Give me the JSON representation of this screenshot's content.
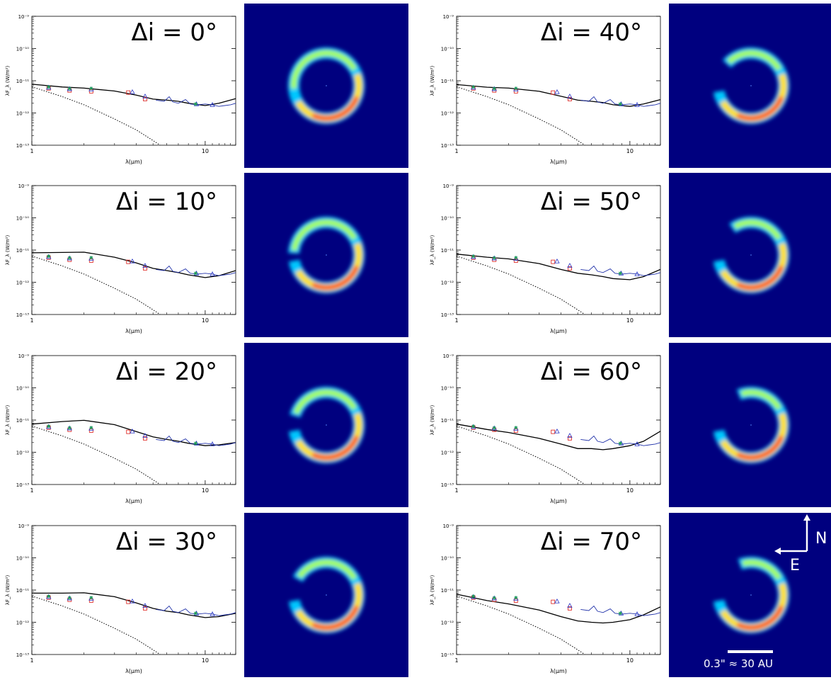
{
  "figure": {
    "axes": {
      "ylabel": "λF_λ (W/m²)",
      "xlabel": "λ(μm)",
      "x_tick_labels": [
        "1",
        "10"
      ],
      "y_tick_labels": [
        "10⁻⁹",
        "10⁻¹⁰",
        "10⁻¹¹",
        "10⁻¹²",
        "10⁻¹³"
      ]
    },
    "compass": {
      "north": "N",
      "east": "E"
    },
    "scale_bar": {
      "label": "0.3\" ≈ 30 AU"
    },
    "colors": {
      "model_line": "#000000",
      "stellar_line": "#000000",
      "irs_spectrum": "#2233aa",
      "square": "#e0302a",
      "triangle": "#2a39c8",
      "star": "#1aa050",
      "image_bg": "#00007f"
    }
  },
  "chart_data": [
    {
      "type": "line",
      "panel": "Δi = 0°",
      "delta_i_label": "Δi = 0°",
      "delta_i": 0,
      "xlim": [
        1,
        15
      ],
      "ylim": [
        1e-13,
        1e-09
      ],
      "xscale": "log",
      "yscale": "log",
      "model": [
        [
          1,
          7.8e-12
        ],
        [
          1.5,
          6.4e-12
        ],
        [
          2,
          5.9e-12
        ],
        [
          3,
          4.8e-12
        ],
        [
          4,
          3.6e-12
        ],
        [
          5,
          2.7e-12
        ],
        [
          6,
          2.5e-12
        ],
        [
          7,
          2.3e-12
        ],
        [
          8,
          2e-12
        ],
        [
          10,
          1.7e-12
        ],
        [
          12,
          2e-12
        ],
        [
          15,
          2.8e-12
        ]
      ]
    },
    {
      "type": "line",
      "panel": "Δi = 10°",
      "delta_i_label": "Δi = 10°",
      "delta_i": 10,
      "xlim": [
        1,
        15
      ],
      "ylim": [
        1e-13,
        1e-09
      ],
      "xscale": "log",
      "yscale": "log",
      "model": [
        [
          1,
          8.2e-12
        ],
        [
          1.5,
          8.4e-12
        ],
        [
          2,
          8.6e-12
        ],
        [
          3,
          6e-12
        ],
        [
          4,
          4e-12
        ],
        [
          5,
          2.7e-12
        ],
        [
          6,
          2.3e-12
        ],
        [
          7,
          2e-12
        ],
        [
          8,
          1.7e-12
        ],
        [
          10,
          1.4e-12
        ],
        [
          12,
          1.6e-12
        ],
        [
          15,
          2.3e-12
        ]
      ]
    },
    {
      "type": "line",
      "panel": "Δi = 20°",
      "delta_i_label": "Δi = 20°",
      "delta_i": 20,
      "xlim": [
        1,
        15
      ],
      "ylim": [
        1e-13,
        1e-09
      ],
      "xscale": "log",
      "yscale": "log",
      "model": [
        [
          1,
          7.5e-12
        ],
        [
          1.5,
          9e-12
        ],
        [
          2,
          9.8e-12
        ],
        [
          3,
          7.2e-12
        ],
        [
          4,
          4.4e-12
        ],
        [
          5,
          3e-12
        ],
        [
          6,
          2.5e-12
        ],
        [
          7,
          2.2e-12
        ],
        [
          8,
          1.9e-12
        ],
        [
          10,
          1.6e-12
        ],
        [
          12,
          1.7e-12
        ],
        [
          15,
          2e-12
        ]
      ]
    },
    {
      "type": "line",
      "panel": "Δi = 30°",
      "delta_i_label": "Δi = 30°",
      "delta_i": 30,
      "xlim": [
        1,
        15
      ],
      "ylim": [
        1e-13,
        1e-09
      ],
      "xscale": "log",
      "yscale": "log",
      "model": [
        [
          1,
          8e-12
        ],
        [
          1.5,
          8e-12
        ],
        [
          2,
          8.2e-12
        ],
        [
          3,
          6.2e-12
        ],
        [
          4,
          4e-12
        ],
        [
          5,
          2.7e-12
        ],
        [
          6,
          2.2e-12
        ],
        [
          7,
          2e-12
        ],
        [
          8,
          1.7e-12
        ],
        [
          10,
          1.4e-12
        ],
        [
          12,
          1.5e-12
        ],
        [
          15,
          1.9e-12
        ]
      ]
    },
    {
      "type": "line",
      "panel": "Δi = 40°",
      "delta_i_label": "Δi = 40°",
      "delta_i": 40,
      "xlim": [
        1,
        15
      ],
      "ylim": [
        1e-13,
        1e-09
      ],
      "xscale": "log",
      "yscale": "log",
      "model": [
        [
          1,
          7.6e-12
        ],
        [
          1.5,
          6.3e-12
        ],
        [
          2,
          5.9e-12
        ],
        [
          3,
          4.7e-12
        ],
        [
          4,
          3.3e-12
        ],
        [
          5,
          2.5e-12
        ],
        [
          6,
          2.3e-12
        ],
        [
          7,
          2.1e-12
        ],
        [
          8,
          1.8e-12
        ],
        [
          10,
          1.6e-12
        ],
        [
          12,
          1.9e-12
        ],
        [
          15,
          2.6e-12
        ]
      ]
    },
    {
      "type": "line",
      "panel": "Δi = 50°",
      "delta_i_label": "Δi = 50°",
      "delta_i": 50,
      "xlim": [
        1,
        15
      ],
      "ylim": [
        1e-13,
        1e-09
      ],
      "xscale": "log",
      "yscale": "log",
      "model": [
        [
          1,
          7.5e-12
        ],
        [
          1.5,
          6e-12
        ],
        [
          2,
          5.3e-12
        ],
        [
          3,
          3.8e-12
        ],
        [
          4,
          2.5e-12
        ],
        [
          5,
          1.9e-12
        ],
        [
          6,
          1.7e-12
        ],
        [
          7,
          1.5e-12
        ],
        [
          8,
          1.3e-12
        ],
        [
          10,
          1.2e-12
        ],
        [
          12,
          1.5e-12
        ],
        [
          15,
          2.5e-12
        ]
      ]
    },
    {
      "type": "line",
      "panel": "Δi = 60°",
      "delta_i_label": "Δi = 60°",
      "delta_i": 60,
      "xlim": [
        1,
        15
      ],
      "ylim": [
        1e-13,
        1e-09
      ],
      "xscale": "log",
      "yscale": "log",
      "model": [
        [
          1,
          7.5e-12
        ],
        [
          1.5,
          5.1e-12
        ],
        [
          2,
          4.1e-12
        ],
        [
          3,
          2.7e-12
        ],
        [
          4,
          1.8e-12
        ],
        [
          5,
          1.3e-12
        ],
        [
          6,
          1.3e-12
        ],
        [
          7,
          1.2e-12
        ],
        [
          8,
          1.3e-12
        ],
        [
          10,
          1.6e-12
        ],
        [
          12,
          2.2e-12
        ],
        [
          15,
          4.5e-12
        ]
      ]
    },
    {
      "type": "line",
      "panel": "Δi = 70°",
      "delta_i_label": "Δi = 70°",
      "delta_i": 70,
      "xlim": [
        1,
        15
      ],
      "ylim": [
        1e-13,
        1e-09
      ],
      "xscale": "log",
      "yscale": "log",
      "model": [
        [
          1,
          7.4e-12
        ],
        [
          1.5,
          4.7e-12
        ],
        [
          2,
          3.7e-12
        ],
        [
          3,
          2.4e-12
        ],
        [
          4,
          1.5e-12
        ],
        [
          5,
          1.1e-12
        ],
        [
          6,
          1e-12
        ],
        [
          7,
          9.5e-13
        ],
        [
          8,
          1e-12
        ],
        [
          10,
          1.2e-12
        ],
        [
          12,
          1.7e-12
        ],
        [
          15,
          3e-12
        ]
      ]
    }
  ],
  "shared_data": {
    "stellar_photosphere": [
      [
        1,
        6.5e-12
      ],
      [
        1.5,
        3.2e-12
      ],
      [
        2,
        1.8e-12
      ],
      [
        3,
        6.5e-13
      ],
      [
        4,
        3e-13
      ],
      [
        5,
        1.4e-13
      ],
      [
        5.5,
        1e-13
      ]
    ],
    "square_points": [
      [
        1.25,
        5.8e-12
      ],
      [
        1.65,
        5e-12
      ],
      [
        2.2,
        4.7e-12
      ],
      [
        3.6,
        4.3e-12
      ],
      [
        4.5,
        2.7e-12
      ]
    ],
    "triangle_points": [
      [
        1.25,
        6.2e-12
      ],
      [
        1.65,
        5.6e-12
      ],
      [
        2.2,
        5.5e-12
      ],
      [
        3.8,
        4.5e-12
      ],
      [
        4.5,
        3.3e-12
      ],
      [
        8.9,
        1.9e-12
      ],
      [
        11.0,
        1.8e-12
      ]
    ],
    "star_points": [
      [
        1.25,
        6.4e-12
      ],
      [
        1.65,
        5.7e-12
      ],
      [
        2.2,
        5.8e-12
      ],
      [
        8.8,
        1.9e-12
      ]
    ],
    "irs_spectrum": [
      [
        5.2,
        2.5e-12
      ],
      [
        5.8,
        2.3e-12
      ],
      [
        6.2,
        3.2e-12
      ],
      [
        6.5,
        2.2e-12
      ],
      [
        7.0,
        2e-12
      ],
      [
        7.7,
        2.6e-12
      ],
      [
        8.2,
        1.9e-12
      ],
      [
        9,
        1.8e-12
      ],
      [
        10,
        1.9e-12
      ],
      [
        11,
        1.8e-12
      ],
      [
        12,
        1.6e-12
      ],
      [
        13,
        1.7e-12
      ],
      [
        14,
        1.8e-12
      ],
      [
        15,
        2e-12
      ]
    ]
  }
}
